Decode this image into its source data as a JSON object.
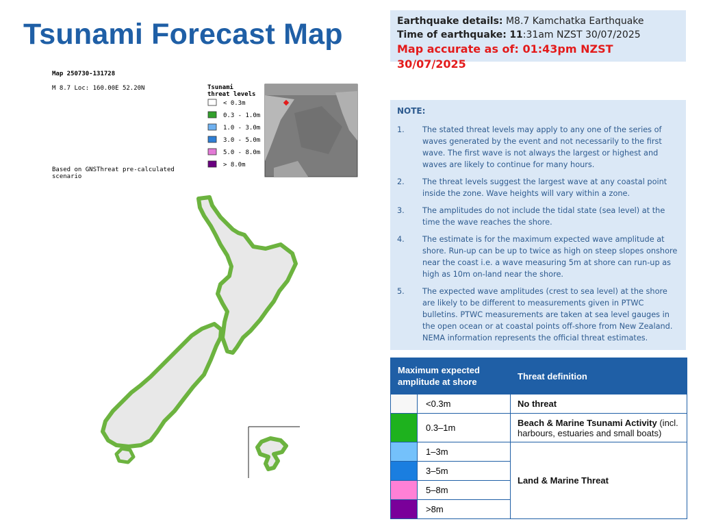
{
  "header": {
    "title": "Tsunami Forecast Map"
  },
  "details": {
    "earthquake_label": "Earthquake details:",
    "earthquake_value": "M8.7 Kamchatka Earthquake",
    "time_label": "Time of earthquake:",
    "time_bold": "11",
    "time_rest": ":31am NZST 30/07/2025",
    "accurate": "Map accurate as of: 01:43pm NZST 30/07/2025"
  },
  "map": {
    "map_id": "Map 250730-131728",
    "loc": "M 8.7 Loc: 160.00E 52.20N",
    "legend_title_1": "Tsunami",
    "legend_title_2": "threat levels",
    "legend_items": [
      {
        "label": "< 0.3m",
        "color": "#ffffff"
      },
      {
        "label": "0.3 - 1.0m",
        "color": "#33a02c"
      },
      {
        "label": "1.0 - 3.0m",
        "color": "#6fb1f0"
      },
      {
        "label": "3.0 - 5.0m",
        "color": "#2e7fd6"
      },
      {
        "label": "5.0 - 8.0m",
        "color": "#e37ad6"
      },
      {
        "label": "> 8.0m",
        "color": "#6a0080"
      }
    ],
    "based_1": "Based on GNSThreat pre-calculated",
    "based_2": "scenario",
    "land_color": "#e8e8e8",
    "coast_color": "#6cb33f"
  },
  "note": {
    "title": "NOTE:",
    "items": [
      {
        "num": "1.",
        "text": "The stated threat levels may apply to any one of the series of waves generated by the event and not necessarily to the first wave. The first wave is not always the largest or highest and waves are likely to continue for many hours."
      },
      {
        "num": "2.",
        "text": "The threat levels suggest the largest wave at any coastal point inside the zone. Wave heights will vary within a zone."
      },
      {
        "num": "3.",
        "text": "The amplitudes do not include the tidal state (sea level) at the time the wave reaches the shore."
      },
      {
        "num": "4.",
        "text": "The estimate is for the maximum expected wave amplitude at shore. Run-up can be up to twice as high on steep slopes onshore near the coast i.e. a wave measuring 5m at shore can run-up as high as 10m on-land near the shore."
      },
      {
        "num": "5.",
        "text": "The expected wave amplitudes (crest to sea level) at the shore are likely to be different to measurements given in PTWC bulletins. PTWC measurements are taken at sea level gauges in the open ocean or at coastal points off-shore from New Zealand. NEMA information represents the official threat estimates."
      }
    ]
  },
  "table": {
    "header_left": "Maximum expected amplitude at shore",
    "header_right": "Threat definition",
    "rows": [
      {
        "range": "<0.3m",
        "color": "#f7f7f7"
      },
      {
        "range": "0.3–1m",
        "color": "#1eb21e"
      },
      {
        "range": "1–3m",
        "color": "#74c1fb"
      },
      {
        "range": "3–5m",
        "color": "#1a7ee0"
      },
      {
        "range": "5–8m",
        "color": "#ff80d6"
      },
      {
        "range": ">8m",
        "color": "#7a009a"
      }
    ],
    "def_no_threat": "No threat",
    "def_beach_bold": "Beach & Marine Tsunami Activity",
    "def_beach_rest": " (incl. harbours, estuaries and small boats)",
    "def_land": "Land & Marine Threat"
  }
}
